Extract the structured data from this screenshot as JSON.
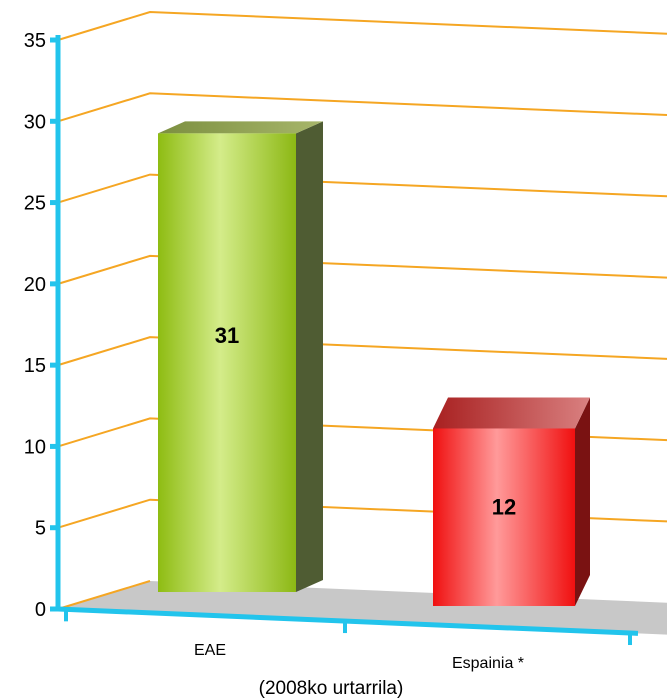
{
  "chart_data": {
    "type": "bar",
    "categories": [
      "EAE",
      "Espainia *"
    ],
    "values": [
      31,
      12
    ],
    "data_labels": [
      "31",
      "12"
    ],
    "caption": "(2008ko urtarrila)",
    "ylim": [
      0,
      35
    ],
    "yticks": [
      0,
      5,
      10,
      15,
      20,
      25,
      30,
      35
    ],
    "grid": true,
    "style": "3d",
    "colors": {
      "bar1": "#9bc91a",
      "bar2": "#ff1a1a",
      "gridline": "#f5a623",
      "axis": "#22c4ec",
      "floor": "#c8c8c8"
    }
  }
}
